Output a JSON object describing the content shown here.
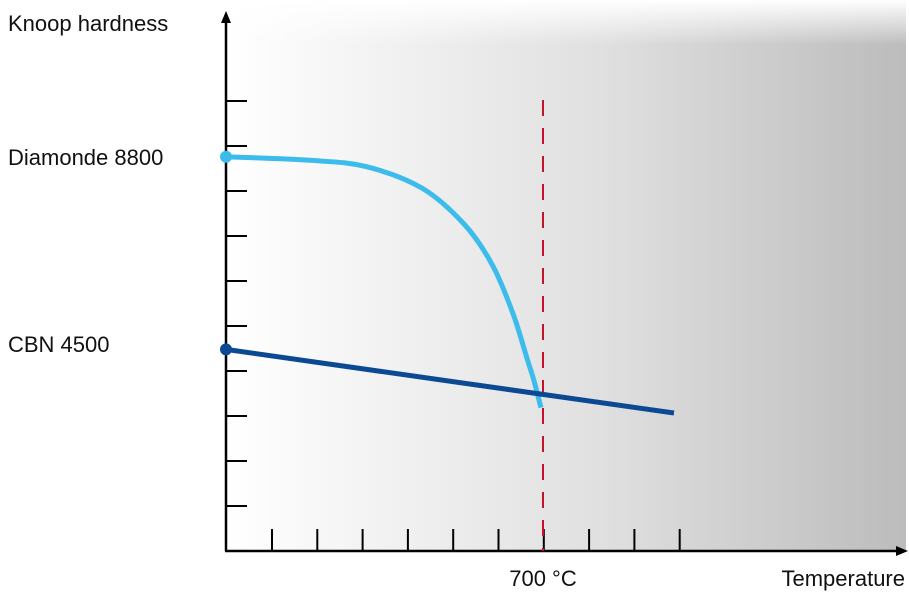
{
  "chart_data": {
    "type": "line",
    "ylabel": "Knoop hardness",
    "xlabel": "Temperature",
    "marker": {
      "label": "700 °C",
      "color": "#c8102e"
    },
    "y_labels": [
      "Diamonde 8800",
      "CBN 4500"
    ],
    "series": [
      {
        "key": "diamond",
        "color": "#3bbcea",
        "points": [
          [
            0,
            8800
          ],
          [
            120,
            8720
          ],
          [
            200,
            8580
          ],
          [
            280,
            8100
          ],
          [
            340,
            7300
          ],
          [
            380,
            6400
          ],
          [
            410,
            5300
          ],
          [
            430,
            4300
          ],
          [
            440,
            3800
          ],
          [
            450,
            3200
          ]
        ]
      },
      {
        "key": "cbn",
        "color": "#0b4a93",
        "points": [
          [
            0,
            4500
          ],
          [
            640,
            3080
          ]
        ]
      }
    ]
  }
}
